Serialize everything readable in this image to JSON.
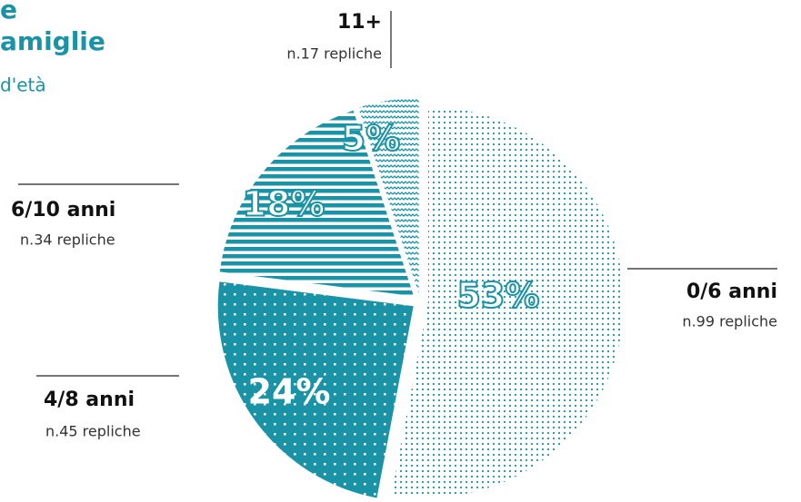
{
  "header": {
    "title_lines": [
      "e",
      "amiglie"
    ],
    "subtitle": "d'età"
  },
  "chart_data": {
    "type": "pie",
    "color": "#1a93a6",
    "categories": [
      "0/6 anni",
      "4/8 anni",
      "6/10 anni",
      "11+"
    ],
    "sublabels": [
      "n.99 repliche",
      "n.45 repliche",
      "n.34 repliche",
      "n.17 repliche"
    ],
    "values": [
      53,
      24,
      18,
      5
    ],
    "value_labels": [
      "53%",
      "24%",
      "18%",
      "5%"
    ]
  }
}
